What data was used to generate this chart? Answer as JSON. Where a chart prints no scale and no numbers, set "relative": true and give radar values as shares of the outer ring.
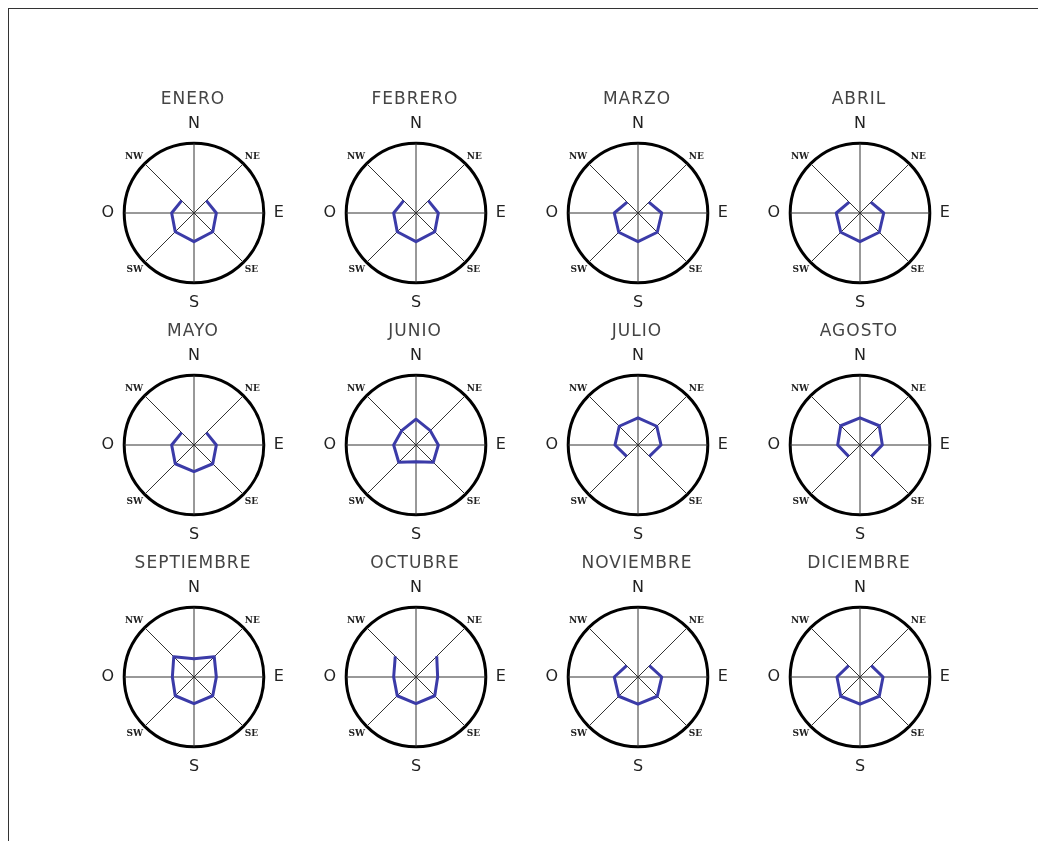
{
  "chart_data": [
    {
      "type": "radar",
      "title": "ENERO",
      "categories": [
        "N",
        "NE",
        "E",
        "SE",
        "S",
        "SW",
        "O",
        "NW"
      ],
      "relative": true,
      "marker": "none",
      "series": [
        {
          "color": "#3b3ba8",
          "values": [
            null,
            0.25,
            0.32,
            0.38,
            0.41,
            0.38,
            0.32,
            0.25
          ]
        }
      ]
    },
    {
      "type": "radar",
      "title": "FEBRERO",
      "categories": [
        "N",
        "NE",
        "E",
        "SE",
        "S",
        "SW",
        "O",
        "NW"
      ],
      "relative": true,
      "marker": "none",
      "series": [
        {
          "color": "#3b3ba8",
          "values": [
            null,
            0.25,
            0.32,
            0.38,
            0.41,
            0.38,
            0.32,
            0.25
          ]
        }
      ]
    },
    {
      "type": "radar",
      "title": "MARZO",
      "categories": [
        "N",
        "NE",
        "E",
        "SE",
        "S",
        "SW",
        "O",
        "NW"
      ],
      "relative": true,
      "marker": "none",
      "series": [
        {
          "color": "#3b3ba8",
          "values": [
            null,
            0.22,
            0.34,
            0.39,
            0.41,
            0.39,
            0.34,
            0.22
          ]
        }
      ]
    },
    {
      "type": "radar",
      "title": "ABRIL",
      "categories": [
        "N",
        "NE",
        "E",
        "SE",
        "S",
        "SW",
        "O",
        "NW"
      ],
      "relative": true,
      "marker": "none",
      "series": [
        {
          "color": "#3b3ba8",
          "values": [
            null,
            0.22,
            0.34,
            0.39,
            0.41,
            0.39,
            0.34,
            0.22
          ]
        }
      ]
    },
    {
      "type": "radar",
      "title": "MAYO",
      "categories": [
        "N",
        "NE",
        "E",
        "SE",
        "S",
        "SW",
        "O",
        "NW"
      ],
      "relative": true,
      "marker": "none",
      "series": [
        {
          "color": "#3b3ba8",
          "values": [
            null,
            0.25,
            0.32,
            0.38,
            0.38,
            0.38,
            0.32,
            0.25
          ]
        }
      ]
    },
    {
      "type": "radar",
      "title": "JUNIO",
      "categories": [
        "N",
        "NE",
        "E",
        "SE",
        "S",
        "SW",
        "O",
        "NW"
      ],
      "relative": true,
      "marker": "none",
      "series": [
        {
          "color": "#3b3ba8",
          "values": [
            0.37,
            0.29,
            0.32,
            0.35,
            0.24,
            0.35,
            0.32,
            0.29
          ]
        }
      ]
    },
    {
      "type": "radar",
      "title": "JULIO",
      "categories": [
        "N",
        "NE",
        "E",
        "SE",
        "S",
        "SW",
        "O",
        "NW"
      ],
      "relative": true,
      "marker": "none",
      "series": [
        {
          "color": "#3b3ba8",
          "values": [
            0.39,
            0.38,
            0.33,
            0.23,
            null,
            0.23,
            0.33,
            0.38
          ]
        }
      ]
    },
    {
      "type": "radar",
      "title": "AGOSTO",
      "categories": [
        "N",
        "NE",
        "E",
        "SE",
        "S",
        "SW",
        "O",
        "NW"
      ],
      "relative": true,
      "marker": "none",
      "series": [
        {
          "color": "#3b3ba8",
          "values": [
            0.39,
            0.39,
            0.32,
            0.23,
            null,
            0.23,
            0.32,
            0.39
          ]
        }
      ]
    },
    {
      "type": "radar",
      "title": "SEPTIEMBRE",
      "categories": [
        "N",
        "NE",
        "E",
        "SE",
        "S",
        "SW",
        "O",
        "NW"
      ],
      "relative": true,
      "marker": "none",
      "series": [
        {
          "color": "#3b3ba8",
          "values": [
            0.26,
            0.41,
            0.32,
            0.38,
            0.38,
            0.38,
            0.31,
            0.41
          ]
        }
      ]
    },
    {
      "type": "radar",
      "title": "OCTUBRE",
      "categories": [
        "N",
        "NE",
        "E",
        "SE",
        "S",
        "SW",
        "O",
        "NW"
      ],
      "relative": true,
      "marker": "none",
      "series": [
        {
          "color": "#3b3ba8",
          "values": [
            null,
            0.42,
            0.31,
            0.38,
            0.38,
            0.38,
            0.32,
            0.42
          ]
        }
      ]
    },
    {
      "type": "radar",
      "title": "NOVIEMBRE",
      "categories": [
        "N",
        "NE",
        "E",
        "SE",
        "S",
        "SW",
        "O",
        "NW"
      ],
      "relative": true,
      "marker": "none",
      "series": [
        {
          "color": "#3b3ba8",
          "values": [
            null,
            0.23,
            0.34,
            0.39,
            0.39,
            0.39,
            0.34,
            0.23
          ]
        }
      ]
    },
    {
      "type": "radar",
      "title": "DICIEMBRE",
      "categories": [
        "N",
        "NE",
        "E",
        "SE",
        "S",
        "SW",
        "O",
        "NW"
      ],
      "relative": true,
      "marker": "none",
      "series": [
        {
          "color": "#3b3ba8",
          "values": [
            null,
            0.23,
            0.33,
            0.39,
            0.39,
            0.39,
            0.33,
            0.23
          ]
        }
      ]
    }
  ]
}
